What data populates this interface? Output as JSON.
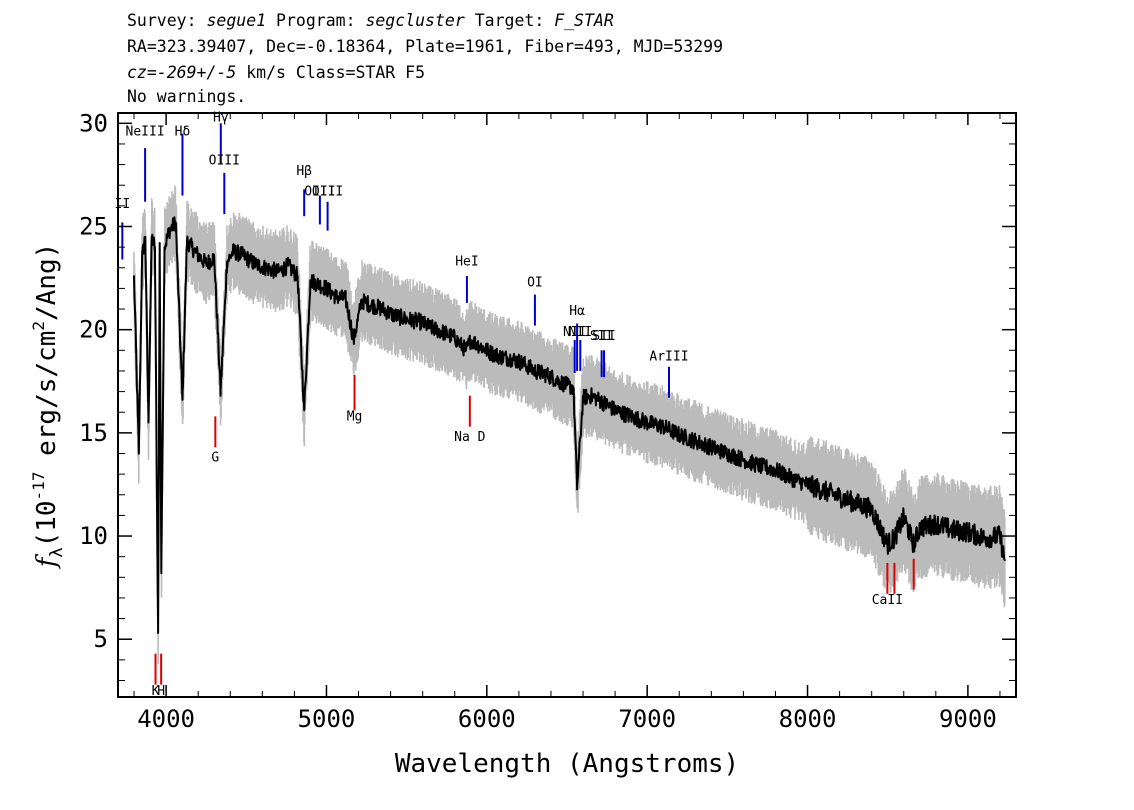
{
  "header": {
    "line1": {
      "k1": "Survey: ",
      "v1": "segue1",
      "k2": " Program: ",
      "v2": "segcluster",
      "k3": " Target: ",
      "v3": "F_STAR"
    },
    "line2": "RA=323.39407, Dec=-0.18364, Plate=1961, Fiber=493, MJD=53299",
    "line3": {
      "v1": "cz=-269+/-5",
      "rest": " km/s Class=STAR F5"
    },
    "line4": "No warnings."
  },
  "chart_data": {
    "type": "line",
    "title": "",
    "xlabel": "Wavelength (Angstroms)",
    "ylabel": "f",
    "ylabel_sub": "λ",
    "ylabel_units_prefix": "(10",
    "ylabel_exp1": "-17",
    "ylabel_units_mid": " erg/s/cm",
    "ylabel_exp2": "2",
    "ylabel_units_suffix": "/Ang)",
    "xlim": [
      3700,
      9300
    ],
    "ylim": [
      2.2,
      30.5
    ],
    "xticks": [
      4000,
      5000,
      6000,
      7000,
      8000,
      9000
    ],
    "yticks": [
      5,
      10,
      15,
      20,
      25,
      30
    ],
    "colors": {
      "flux": "#000000",
      "noise": "#bbbbbb",
      "emission": "#0000cc",
      "absorption": "#dd0000"
    },
    "series": [
      {
        "style": "black-flux",
        "x": [
          3800,
          3830,
          3850,
          3870,
          3890,
          3910,
          3930,
          3950,
          3960,
          3970,
          3990,
          4020,
          4060,
          4102,
          4130,
          4160,
          4200,
          4250,
          4300,
          4340,
          4380,
          4420,
          4480,
          4550,
          4620,
          4700,
          4760,
          4820,
          4861,
          4900,
          4950,
          5000,
          5060,
          5120,
          5170,
          5220,
          5280,
          5350,
          5420,
          5500,
          5580,
          5650,
          5720,
          5800,
          5870,
          5900,
          5960,
          6020,
          6080,
          6150,
          6220,
          6300,
          6380,
          6450,
          6500,
          6540,
          6563,
          6600,
          6650,
          6700,
          6800,
          6900,
          7000,
          7100,
          7200,
          7300,
          7400,
          7500,
          7600,
          7700,
          7800,
          7900,
          8000,
          8100,
          8200,
          8300,
          8400,
          8498,
          8542,
          8600,
          8662,
          8700,
          8800,
          8900,
          9000,
          9100,
          9200,
          9230
        ],
        "y": [
          22.5,
          14.0,
          23.5,
          24.5,
          15.5,
          24.5,
          24.0,
          5.3,
          24.2,
          8.2,
          24.0,
          24.8,
          25.2,
          16.6,
          24.3,
          24.0,
          23.6,
          23.2,
          23.5,
          17.0,
          23.3,
          23.8,
          23.6,
          23.2,
          23.0,
          22.8,
          23.1,
          22.6,
          16.1,
          22.4,
          22.2,
          22.0,
          21.6,
          21.5,
          19.5,
          21.4,
          21.2,
          21.0,
          20.7,
          20.5,
          20.4,
          20.1,
          19.9,
          19.6,
          19.0,
          19.5,
          19.2,
          18.9,
          18.7,
          18.6,
          18.4,
          18.0,
          17.8,
          17.5,
          17.3,
          17.2,
          12.4,
          16.7,
          16.8,
          16.6,
          16.1,
          15.8,
          15.5,
          15.3,
          14.9,
          14.6,
          14.3,
          14.0,
          13.7,
          13.4,
          13.2,
          12.8,
          12.5,
          12.2,
          11.9,
          11.6,
          11.3,
          9.6,
          9.9,
          10.9,
          9.6,
          10.4,
          10.6,
          10.3,
          10.2,
          9.9,
          10.0,
          8.8
        ]
      }
    ],
    "lines_emission": [
      {
        "label": "NeIII",
        "wave": 3869,
        "y": [
          26.2,
          28.8
        ],
        "ty": 29.4
      },
      {
        "label": "Hδ",
        "wave": 4102,
        "y": [
          26.5,
          29.5
        ],
        "ty": 29.4
      },
      {
        "label": "Hγ",
        "wave": 4341,
        "y": [
          28.0,
          30.0
        ],
        "ty": 30.1
      },
      {
        "label": "OIII",
        "wave": 4363,
        "y": [
          25.6,
          27.6
        ],
        "ty": 28.0
      },
      {
        "label": "Hβ",
        "wave": 4861,
        "y": [
          25.5,
          26.8
        ],
        "ty": 27.5
      },
      {
        "label": "OIII",
        "wave": 4959,
        "y": [
          25.1,
          26.5
        ],
        "ty": 26.5
      },
      {
        "label": "OIII",
        "wave": 5007,
        "y": [
          24.8,
          26.2
        ],
        "ty": 26.5
      },
      {
        "label": "HeI",
        "wave": 5876,
        "y": [
          21.3,
          22.6
        ],
        "ty": 23.1
      },
      {
        "label": "OI",
        "wave": 6300,
        "y": [
          20.2,
          21.7
        ],
        "ty": 22.1
      },
      {
        "label": "NII",
        "wave": 6548,
        "y": [
          17.9,
          19.5
        ],
        "ty": 19.7
      },
      {
        "label": "Hα",
        "wave": 6563,
        "y": [
          18.0,
          20.3
        ],
        "ty": 20.7
      },
      {
        "label": "NII",
        "wave": 6583,
        "y": [
          18.0,
          19.5
        ],
        "ty": 19.7
      },
      {
        "label": "SII",
        "wave": 6716,
        "y": [
          17.7,
          19.0
        ],
        "ty": 19.5
      },
      {
        "label": "SII",
        "wave": 6731,
        "y": [
          17.7,
          19.0
        ],
        "ty": 19.5
      },
      {
        "label": "ArIII",
        "wave": 7136,
        "y": [
          16.7,
          18.2
        ],
        "ty": 18.5
      },
      {
        "label": "II",
        "wave": 3727,
        "y": [
          23.4,
          25.2
        ],
        "ty": 25.9
      }
    ],
    "lines_absorption": [
      {
        "label": "K",
        "wave": 3934,
        "y": [
          2.8,
          4.3
        ],
        "ty": 2.3
      },
      {
        "label": "H",
        "wave": 3969,
        "y": [
          2.8,
          4.3
        ],
        "ty": 2.3
      },
      {
        "label": "G",
        "wave": 4307,
        "y": [
          14.3,
          15.8
        ],
        "ty": 13.6
      },
      {
        "label": "Mg",
        "wave": 5175,
        "y": [
          16.1,
          17.8
        ],
        "ty": 15.6
      },
      {
        "label": "Na  D",
        "wave": 5894,
        "y": [
          15.3,
          16.8
        ],
        "ty": 14.6
      },
      {
        "label": "CaII",
        "wave": 8498,
        "y": [
          7.2,
          8.7
        ],
        "ty": 6.7
      },
      {
        "label": "",
        "wave": 8542,
        "y": [
          7.2,
          8.7
        ],
        "ty": 6.7
      },
      {
        "label": "",
        "wave": 8662,
        "y": [
          7.4,
          8.9
        ],
        "ty": 6.7
      }
    ]
  }
}
